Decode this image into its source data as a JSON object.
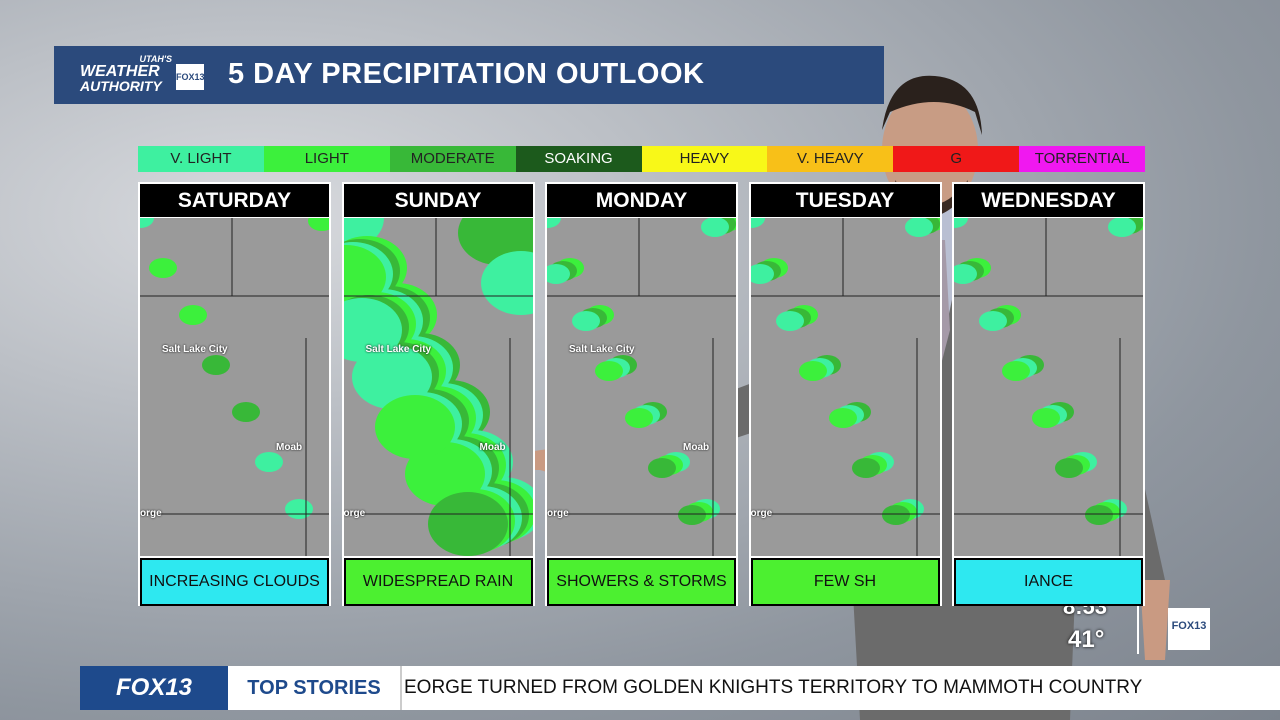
{
  "header": {
    "logo": {
      "line1": "UTAH'S",
      "line2": "WEATHER",
      "line3": "AUTHORITY",
      "badge": "FOX13"
    },
    "title": "5 DAY PRECIPITATION OUTLOOK"
  },
  "legend": [
    {
      "label": "V. LIGHT",
      "color": "#3ef0a0"
    },
    {
      "label": "LIGHT",
      "color": "#3cf03c"
    },
    {
      "label": "MODERATE",
      "color": "#38b838"
    },
    {
      "label": "SOAKING",
      "color": "#1c5a1c"
    },
    {
      "label": "HEAVY",
      "color": "#f8f818"
    },
    {
      "label": "V. HEAVY",
      "color": "#f8c018"
    },
    {
      "label": "G",
      "color": "#f01818"
    },
    {
      "label": "TORRENTIAL",
      "color": "#f018f0"
    }
  ],
  "days": [
    {
      "name": "SATURDAY",
      "caption": "INCREASING CLOUDS",
      "caption_color": "#2ee8f0",
      "places": [
        "Salt Lake City",
        "Moab",
        "orge"
      ]
    },
    {
      "name": "SUNDAY",
      "caption": "WIDESPREAD RAIN",
      "caption_color": "#4cf030",
      "places": [
        "Salt Lake City",
        "Moab",
        "orge"
      ]
    },
    {
      "name": "MONDAY",
      "caption": "SHOWERS & STORMS",
      "caption_color": "#4cf030",
      "places": [
        "Salt Lake City",
        "Moab",
        "orge"
      ]
    },
    {
      "name": "TUESDAY",
      "caption": "FEW SH",
      "caption_color": "#4cf030",
      "places": [
        "orge"
      ]
    },
    {
      "name": "WEDNESDAY",
      "caption": "IANCE",
      "caption_color": "#2ee8f0",
      "places": []
    }
  ],
  "clock": {
    "time": "8:53",
    "temp": "41°",
    "badge": "FOX13"
  },
  "ticker": {
    "brand": "FOX13",
    "section": "TOP STORIES",
    "headline": "EORGE TURNED FROM GOLDEN KNIGHTS TERRITORY TO MAMMOTH COUNTRY"
  }
}
